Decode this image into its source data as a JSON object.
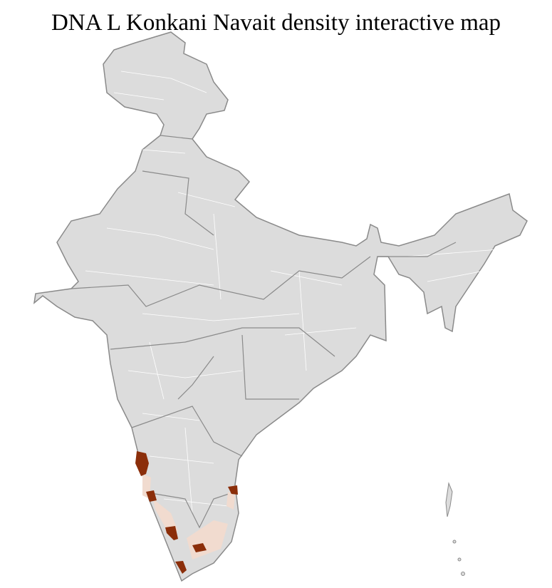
{
  "title": "DNA L Konkani Navait density interactive map",
  "colors": {
    "land": "#dcdcdc",
    "state_border": "#8a8a8a",
    "district_border": "#ffffff",
    "density_high": "#8b2e0a",
    "density_low": "#f1dbcf"
  },
  "highlighted_districts": [
    {
      "level": "high"
    },
    {
      "level": "high"
    },
    {
      "level": "high"
    },
    {
      "level": "high"
    },
    {
      "level": "high"
    },
    {
      "level": "high"
    },
    {
      "level": "low"
    },
    {
      "level": "low"
    },
    {
      "level": "low"
    },
    {
      "level": "low"
    }
  ]
}
